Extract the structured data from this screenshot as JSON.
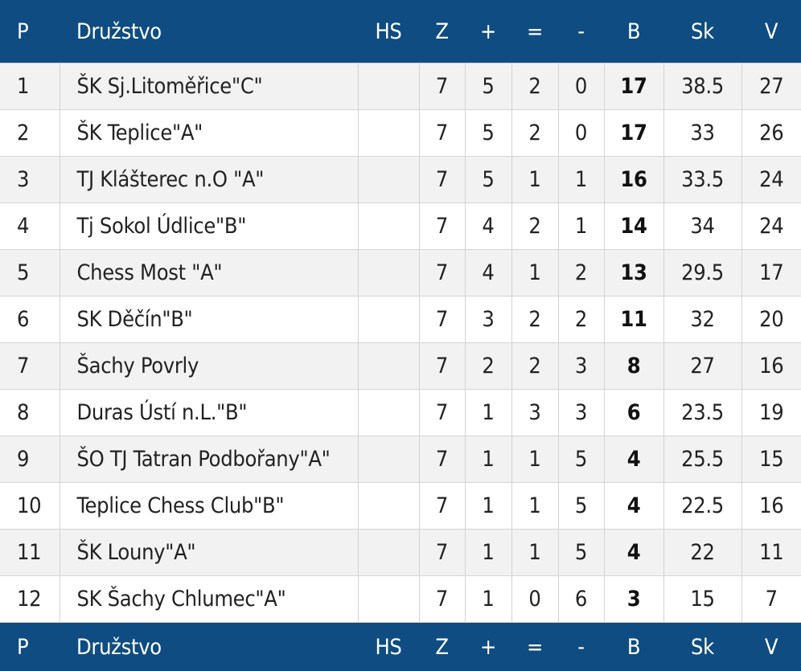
{
  "headers": {
    "p": "P",
    "name": "Družstvo",
    "hs": "HS",
    "z": "Z",
    "plus": "+",
    "eq": "=",
    "minus": "-",
    "b": "B",
    "sk": "Sk",
    "v": "V"
  },
  "rows": [
    {
      "p": "1",
      "name": "ŠK Sj.Litoměřice\"C\"",
      "hs": "",
      "z": "7",
      "plus": "5",
      "eq": "2",
      "minus": "0",
      "b": "17",
      "sk": "38.5",
      "v": "27"
    },
    {
      "p": "2",
      "name": "ŠK Teplice\"A\"",
      "hs": "",
      "z": "7",
      "plus": "5",
      "eq": "2",
      "minus": "0",
      "b": "17",
      "sk": "33",
      "v": "26"
    },
    {
      "p": "3",
      "name": "TJ Klášterec n.O \"A\"",
      "hs": "",
      "z": "7",
      "plus": "5",
      "eq": "1",
      "minus": "1",
      "b": "16",
      "sk": "33.5",
      "v": "24"
    },
    {
      "p": "4",
      "name": "Tj Sokol Údlice\"B\"",
      "hs": "",
      "z": "7",
      "plus": "4",
      "eq": "2",
      "minus": "1",
      "b": "14",
      "sk": "34",
      "v": "24"
    },
    {
      "p": "5",
      "name": "Chess Most \"A\"",
      "hs": "",
      "z": "7",
      "plus": "4",
      "eq": "1",
      "minus": "2",
      "b": "13",
      "sk": "29.5",
      "v": "17"
    },
    {
      "p": "6",
      "name": "SK Děčín\"B\"",
      "hs": "",
      "z": "7",
      "plus": "3",
      "eq": "2",
      "minus": "2",
      "b": "11",
      "sk": "32",
      "v": "20"
    },
    {
      "p": "7",
      "name": "Šachy Povrly",
      "hs": "",
      "z": "7",
      "plus": "2",
      "eq": "2",
      "minus": "3",
      "b": "8",
      "sk": "27",
      "v": "16"
    },
    {
      "p": "8",
      "name": "Duras Ústí n.L.\"B\"",
      "hs": "",
      "z": "7",
      "plus": "1",
      "eq": "3",
      "minus": "3",
      "b": "6",
      "sk": "23.5",
      "v": "19"
    },
    {
      "p": "9",
      "name": "ŠO TJ Tatran Podbořany\"A\"",
      "hs": "",
      "z": "7",
      "plus": "1",
      "eq": "1",
      "minus": "5",
      "b": "4",
      "sk": "25.5",
      "v": "15"
    },
    {
      "p": "10",
      "name": "Teplice Chess Club\"B\"",
      "hs": "",
      "z": "7",
      "plus": "1",
      "eq": "1",
      "minus": "5",
      "b": "4",
      "sk": "22.5",
      "v": "16"
    },
    {
      "p": "11",
      "name": "ŠK Louny\"A\"",
      "hs": "",
      "z": "7",
      "plus": "1",
      "eq": "1",
      "minus": "5",
      "b": "4",
      "sk": "22",
      "v": "11"
    },
    {
      "p": "12",
      "name": "SK Šachy Chlumec\"A\"",
      "hs": "",
      "z": "7",
      "plus": "1",
      "eq": "0",
      "minus": "6",
      "b": "3",
      "sk": "15",
      "v": "7"
    }
  ],
  "colors": {
    "header_bg": "#0f4c81",
    "header_text": "#ffffff",
    "row_alt": "#f2f2f2",
    "border": "#d4d4d4"
  }
}
